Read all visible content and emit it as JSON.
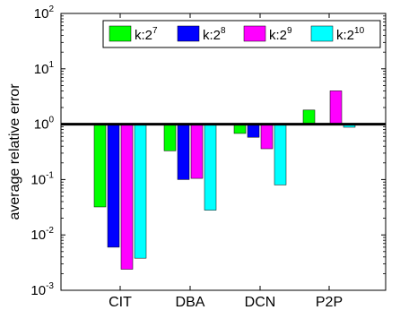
{
  "chart_data": {
    "type": "bar",
    "scale_y": "log",
    "ylabel": "average relative error",
    "xlabel": "",
    "ylim": [
      0.001,
      100
    ],
    "yticks": [
      {
        "base": "10",
        "exp": "-3",
        "value": 0.001
      },
      {
        "base": "10",
        "exp": "-2",
        "value": 0.01
      },
      {
        "base": "10",
        "exp": "-1",
        "value": 0.1
      },
      {
        "base": "10",
        "exp": "0",
        "value": 1
      },
      {
        "base": "10",
        "exp": "1",
        "value": 10
      },
      {
        "base": "10",
        "exp": "2",
        "value": 100
      }
    ],
    "categories": [
      "CIT",
      "DBA",
      "DCN",
      "P2P"
    ],
    "baseline": 1,
    "legend_position": "top-right",
    "series": [
      {
        "name": "k:2",
        "exp": "7",
        "color": "#00ff00",
        "values": [
          0.032,
          0.33,
          0.68,
          1.8
        ]
      },
      {
        "name": "k:2",
        "exp": "8",
        "color": "#0000ff",
        "values": [
          0.006,
          0.1,
          0.58,
          null
        ]
      },
      {
        "name": "k:2",
        "exp": "9",
        "color": "#ff00ff",
        "values": [
          0.0024,
          0.105,
          0.36,
          4.0
        ]
      },
      {
        "name": "k:2",
        "exp": "10",
        "color": "#00ffff",
        "values": [
          0.0038,
          0.028,
          0.08,
          0.88
        ]
      }
    ]
  }
}
